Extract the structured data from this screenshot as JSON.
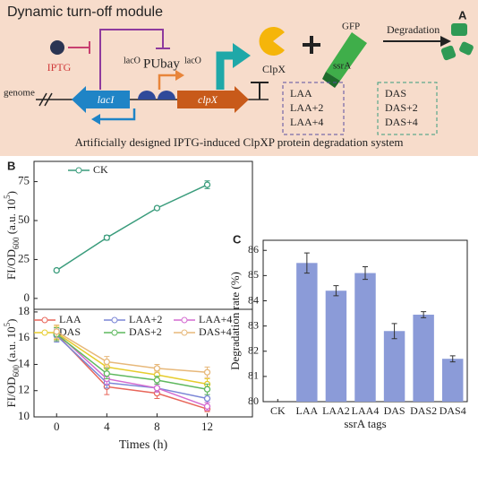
{
  "diagram": {
    "title": "Dynamic turn-off module",
    "panel_label": "A",
    "inducer": "IPTG",
    "operator_left": "lacO",
    "promoter": "PUbay",
    "operator_right": "lacO",
    "genome": "genome",
    "gene_repressor": "lacI",
    "gene_target": "clpX",
    "protein": "ClpX",
    "reporter": "GFP",
    "tag": "ssrA",
    "process": "Degradation",
    "tags_laa": [
      "LAA",
      "LAA+2",
      "LAA+4"
    ],
    "tags_das": [
      "DAS",
      "DAS+2",
      "DAS+4"
    ],
    "caption": "Artificially designed IPTG-induced ClpXP protein degradation system"
  },
  "chart_data": [
    {
      "type": "line",
      "panel_label": "B",
      "ylabel": [
        "FI/OD",
        "600",
        " (a.u. 10",
        "5",
        ")"
      ],
      "x": [
        0,
        4,
        8,
        12
      ],
      "xlim": [
        -1.8,
        15.6
      ],
      "ylim": [
        -7,
        88
      ],
      "yticks": [
        0,
        25,
        50,
        75
      ],
      "series": [
        {
          "name": "CK",
          "color": "#3a9c7c",
          "values": [
            18,
            39,
            58,
            73
          ],
          "errors": [
            1,
            1.5,
            1,
            2.5
          ]
        }
      ]
    },
    {
      "type": "line",
      "ylabel": [
        "FI/OD",
        "600",
        " (a.u. 10",
        "5",
        ")"
      ],
      "xlabel": "Times (h)",
      "x": [
        0,
        4,
        8,
        12
      ],
      "xlim": [
        -1.8,
        15.6
      ],
      "xticks": [
        0,
        4,
        8,
        12
      ],
      "ylim": [
        10,
        18.2
      ],
      "yticks": [
        10,
        12,
        14,
        16,
        18
      ],
      "series": [
        {
          "name": "LAA",
          "color": "#e8665a",
          "values": [
            16.3,
            12.3,
            11.8,
            10.6
          ],
          "errors": [
            0.5,
            0.6,
            0.4,
            0.2
          ]
        },
        {
          "name": "LAA+2",
          "color": "#7b86d6",
          "values": [
            16.2,
            12.6,
            12.2,
            11.4
          ],
          "errors": [
            0.5,
            0.4,
            0.3,
            0.3
          ]
        },
        {
          "name": "LAA+4",
          "color": "#d46bd0",
          "values": [
            16.4,
            12.9,
            12.2,
            10.8
          ],
          "errors": [
            0.5,
            0.4,
            0.3,
            0.3
          ]
        },
        {
          "name": "DAS",
          "color": "#e6cc2c",
          "values": [
            16.4,
            13.8,
            13.2,
            12.5
          ],
          "errors": [
            0.5,
            0.4,
            0.3,
            0.4
          ]
        },
        {
          "name": "DAS+2",
          "color": "#5fb85f",
          "values": [
            16.3,
            13.3,
            12.8,
            12.1
          ],
          "errors": [
            0.5,
            0.4,
            0.3,
            0.4
          ]
        },
        {
          "name": "DAS+4",
          "color": "#e7b87a",
          "values": [
            16.5,
            14.2,
            13.7,
            13.4
          ],
          "errors": [
            0.5,
            0.4,
            0.3,
            0.4
          ]
        }
      ]
    },
    {
      "type": "bar",
      "panel_label": "C",
      "ylabel": "Degradation rate (%)",
      "xlabel": "ssrA tags",
      "categories": [
        "CK",
        "LAA",
        "LAA2",
        "LAA4",
        "DAS",
        "DAS2",
        "DAS4"
      ],
      "values": [
        null,
        85.5,
        84.4,
        85.1,
        82.8,
        83.45,
        81.7
      ],
      "errors": [
        null,
        0.4,
        0.2,
        0.25,
        0.3,
        0.12,
        0.12
      ],
      "color": "#8b9bd8",
      "ylim": [
        80,
        86.4
      ],
      "yticks": [
        80,
        81,
        82,
        83,
        84,
        85,
        86
      ]
    }
  ]
}
